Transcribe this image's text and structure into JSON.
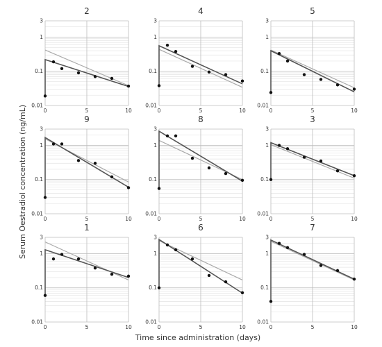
{
  "figure": {
    "xlabel": "Time since administration (days)",
    "ylabel": "Serum Oestradiol concentration (ng/mL)"
  },
  "colors": {
    "observed": "#111111",
    "individual_fit": "#555555",
    "population_fit": "#aaaaaa",
    "grid_major": "#bbbbbb",
    "grid_minor": "#e4e4e4"
  },
  "chart_data": [
    {
      "type": "scatter",
      "title": "2",
      "x_ticks": [
        0,
        5,
        10
      ],
      "y_ticks": [
        0.01,
        0.1,
        1,
        3
      ],
      "y_tick_labels": [
        "0.01",
        "0.1",
        "1",
        "3"
      ],
      "xlim": [
        0,
        10
      ],
      "ylim": [
        0.01,
        3
      ],
      "y_scale": "log",
      "observed": {
        "x": [
          0,
          1,
          2,
          4,
          6,
          8,
          10
        ],
        "y": [
          0.019,
          0.19,
          0.12,
          0.09,
          0.07,
          0.062,
          0.037
        ]
      },
      "individual_fit": {
        "x": [
          0,
          10
        ],
        "y": [
          0.22,
          0.036
        ]
      },
      "population_fit": {
        "x": [
          0,
          10
        ],
        "y": [
          0.42,
          0.038
        ]
      }
    },
    {
      "type": "scatter",
      "title": "4",
      "x_ticks": [
        0,
        5,
        10
      ],
      "y_ticks": [
        0.01,
        0.1,
        1,
        3
      ],
      "y_tick_labels": [
        "0.01",
        "0.1",
        "1",
        "3"
      ],
      "xlim": [
        0,
        10
      ],
      "ylim": [
        0.01,
        3
      ],
      "y_scale": "log",
      "observed": {
        "x": [
          0,
          1,
          2,
          4,
          6,
          8,
          10
        ],
        "y": [
          0.038,
          0.58,
          0.38,
          0.14,
          0.095,
          0.08,
          0.052
        ]
      },
      "individual_fit": {
        "x": [
          0,
          10
        ],
        "y": [
          0.56,
          0.043
        ]
      },
      "population_fit": {
        "x": [
          0,
          10
        ],
        "y": [
          0.44,
          0.034
        ]
      }
    },
    {
      "type": "scatter",
      "title": "5",
      "x_ticks": [
        0,
        5,
        10
      ],
      "y_ticks": [
        0.01,
        0.1,
        1,
        3
      ],
      "y_tick_labels": [
        "0.01",
        "0.1",
        "1",
        "3"
      ],
      "xlim": [
        0,
        10
      ],
      "ylim": [
        0.01,
        3
      ],
      "y_scale": "log",
      "observed": {
        "x": [
          0,
          1,
          2,
          4,
          6,
          8,
          10
        ],
        "y": [
          0.024,
          0.33,
          0.2,
          0.08,
          0.058,
          0.04,
          0.03
        ]
      },
      "individual_fit": {
        "x": [
          0,
          10
        ],
        "y": [
          0.4,
          0.025
        ]
      },
      "population_fit": {
        "x": [
          0,
          10
        ],
        "y": [
          0.42,
          0.033
        ]
      }
    },
    {
      "type": "scatter",
      "title": "9",
      "x_ticks": [
        0,
        5,
        10
      ],
      "y_ticks": [
        0.01,
        0.1,
        1,
        3
      ],
      "y_tick_labels": [
        "0.01",
        "0.1",
        "1",
        "3"
      ],
      "xlim": [
        0,
        10
      ],
      "ylim": [
        0.01,
        3
      ],
      "y_scale": "log",
      "observed": {
        "x": [
          0,
          1,
          2,
          4,
          6,
          8,
          10
        ],
        "y": [
          0.03,
          1.1,
          1.1,
          0.36,
          0.3,
          0.12,
          0.058
        ]
      },
      "individual_fit": {
        "x": [
          0,
          10
        ],
        "y": [
          1.7,
          0.06
        ]
      },
      "population_fit": {
        "x": [
          0,
          10
        ],
        "y": [
          1.55,
          0.085
        ]
      }
    },
    {
      "type": "scatter",
      "title": "8",
      "x_ticks": [
        0,
        5,
        10
      ],
      "y_ticks": [
        0.01,
        0.1,
        1,
        3
      ],
      "y_tick_labels": [
        "0.01",
        "0.1",
        "1",
        "3"
      ],
      "xlim": [
        0,
        10
      ],
      "ylim": [
        0.01,
        3
      ],
      "y_scale": "log",
      "observed": {
        "x": [
          0,
          1,
          2,
          4,
          6,
          8,
          10
        ],
        "y": [
          0.055,
          1.9,
          1.9,
          0.42,
          0.22,
          0.15,
          0.095
        ]
      },
      "individual_fit": {
        "x": [
          0,
          10
        ],
        "y": [
          2.6,
          0.09
        ]
      },
      "population_fit": {
        "x": [
          0,
          10
        ],
        "y": [
          1.4,
          0.1
        ]
      }
    },
    {
      "type": "scatter",
      "title": "3",
      "x_ticks": [
        0,
        5,
        10
      ],
      "y_ticks": [
        0.01,
        0.1,
        1,
        3
      ],
      "y_tick_labels": [
        "0.01",
        "0.1",
        "1",
        "3"
      ],
      "xlim": [
        0,
        10
      ],
      "ylim": [
        0.01,
        3
      ],
      "y_scale": "log",
      "observed": {
        "x": [
          0,
          1,
          2,
          4,
          6,
          8,
          10
        ],
        "y": [
          0.1,
          1.0,
          0.8,
          0.45,
          0.35,
          0.18,
          0.13
        ]
      },
      "individual_fit": {
        "x": [
          0,
          10
        ],
        "y": [
          1.2,
          0.13
        ]
      },
      "population_fit": {
        "x": [
          0,
          10
        ],
        "y": [
          1.05,
          0.11
        ]
      }
    },
    {
      "type": "scatter",
      "title": "1",
      "x_ticks": [
        0,
        5,
        10
      ],
      "y_ticks": [
        0.01,
        0.1,
        1,
        3
      ],
      "y_tick_labels": [
        "0.01",
        "0.1",
        "1",
        "3"
      ],
      "xlim": [
        0,
        10
      ],
      "ylim": [
        0.01,
        3
      ],
      "y_scale": "log",
      "observed": {
        "x": [
          0,
          1,
          2,
          4,
          6,
          8,
          10
        ],
        "y": [
          0.06,
          0.7,
          0.95,
          0.7,
          0.38,
          0.25,
          0.22
        ]
      },
      "individual_fit": {
        "x": [
          0,
          10
        ],
        "y": [
          1.3,
          0.2
        ]
      },
      "population_fit": {
        "x": [
          0,
          10
        ],
        "y": [
          2.2,
          0.17
        ]
      }
    },
    {
      "type": "scatter",
      "title": "6",
      "x_ticks": [
        0,
        5,
        10
      ],
      "y_ticks": [
        0.01,
        0.1,
        1,
        3
      ],
      "y_tick_labels": [
        "0.01",
        "0.1",
        "1",
        "3"
      ],
      "xlim": [
        0,
        10
      ],
      "ylim": [
        0.01,
        3
      ],
      "y_scale": "log",
      "observed": {
        "x": [
          0,
          1,
          2,
          4,
          6,
          8,
          10
        ],
        "y": [
          0.1,
          1.8,
          1.3,
          0.7,
          0.23,
          0.15,
          0.072
        ]
      },
      "individual_fit": {
        "x": [
          0,
          10
        ],
        "y": [
          2.6,
          0.07
        ]
      },
      "population_fit": {
        "x": [
          0,
          10
        ],
        "y": [
          2.4,
          0.17
        ]
      }
    },
    {
      "type": "scatter",
      "title": "7",
      "x_ticks": [
        0,
        5,
        10
      ],
      "y_ticks": [
        0.01,
        0.1,
        1,
        3
      ],
      "y_tick_labels": [
        "0.01",
        "0.1",
        "1",
        "3"
      ],
      "xlim": [
        0,
        10
      ],
      "ylim": [
        0.01,
        3
      ],
      "y_scale": "log",
      "observed": {
        "x": [
          0,
          1,
          2,
          4,
          6,
          8,
          10
        ],
        "y": [
          0.04,
          2.0,
          1.5,
          0.95,
          0.45,
          0.32,
          0.18
        ]
      },
      "individual_fit": {
        "x": [
          0,
          10
        ],
        "y": [
          2.5,
          0.18
        ]
      },
      "population_fit": {
        "x": [
          0,
          10
        ],
        "y": [
          2.3,
          0.17
        ]
      }
    }
  ]
}
